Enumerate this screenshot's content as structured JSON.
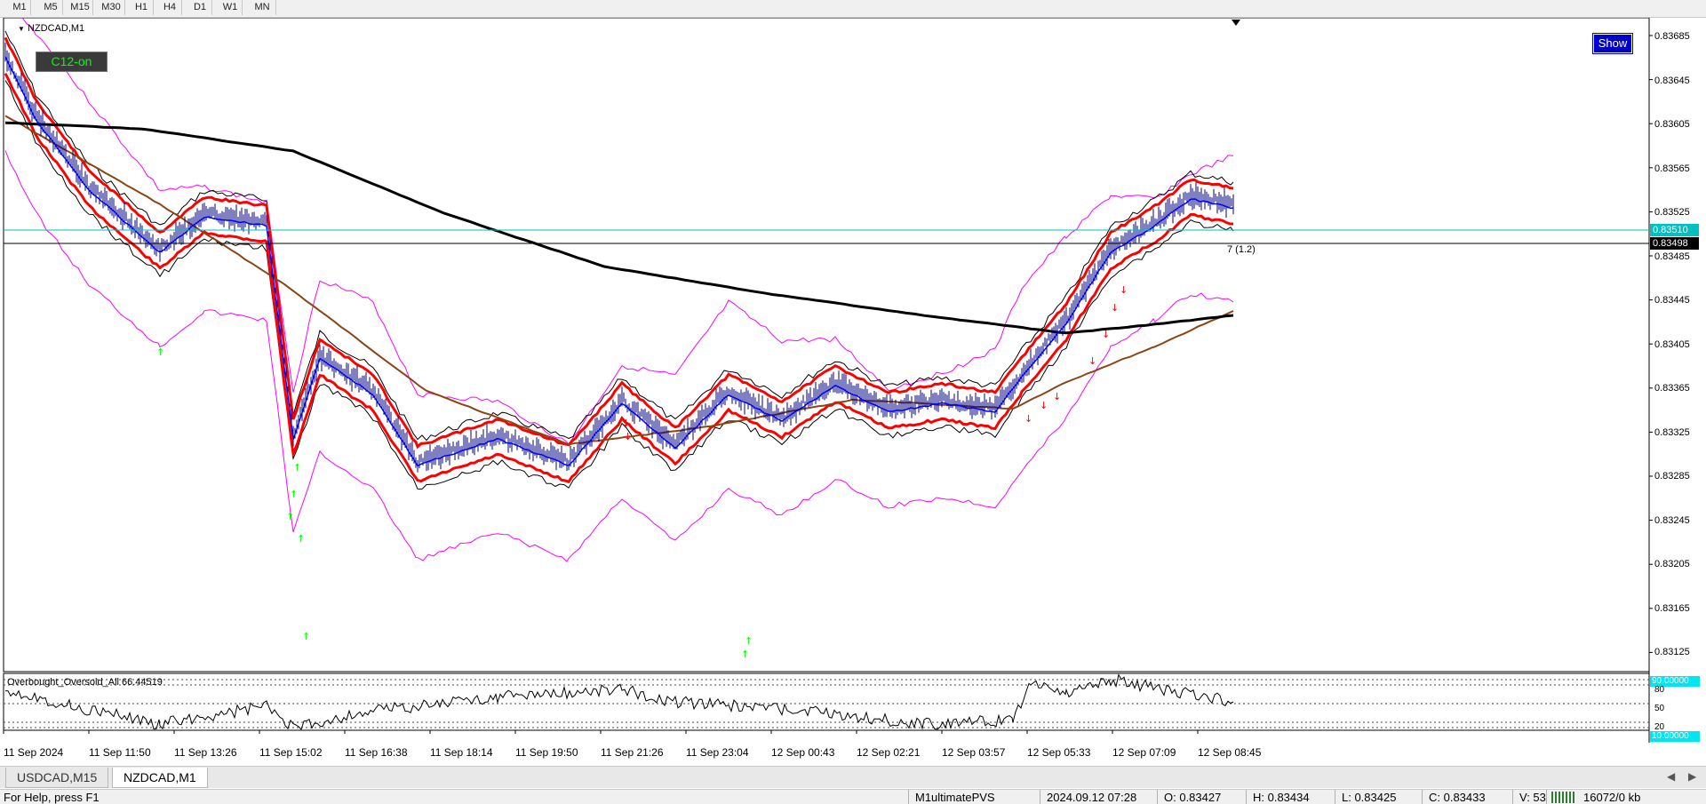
{
  "toolbar": {
    "timeframes": [
      "M1",
      "M5",
      "M15",
      "M30",
      "H1",
      "H4",
      "D1",
      "W1",
      "MN"
    ]
  },
  "chart": {
    "symbol_label": "NZDCAD,M1",
    "ea_badge": "C12-on",
    "show_button": "Show",
    "bid_price": "0.83510",
    "ask_price": "0.83498",
    "annotation": "7 (1.2)",
    "price_axis": [
      "0.83685",
      "0.83645",
      "0.83605",
      "0.83565",
      "0.83525",
      "0.83485",
      "0.83445",
      "0.83405",
      "0.83365",
      "0.83325",
      "0.83285",
      "0.83245",
      "0.83205",
      "0.83165",
      "0.83125"
    ],
    "time_axis": [
      "11 Sep 2024",
      "11 Sep 11:50",
      "11 Sep 13:26",
      "11 Sep 15:02",
      "11 Sep 16:38",
      "11 Sep 18:14",
      "11 Sep 19:50",
      "11 Sep 21:26",
      "11 Sep 23:04",
      "12 Sep 00:43",
      "12 Sep 02:21",
      "12 Sep 03:57",
      "12 Sep 05:33",
      "12 Sep 07:09",
      "12 Sep 08:45"
    ],
    "colors": {
      "price_bars": "#000080",
      "ma_long": "#000000",
      "ma_brown": "#8b4513",
      "envelope_red": "#ff0000",
      "bollinger_magenta": "#ff00ff",
      "bid_line": "#00c0c0",
      "buy_arrows": "#00ff00",
      "sell_arrows": "#ff0000"
    }
  },
  "indicator": {
    "label": "Overbought_Oversold_All 66.44519",
    "levels": [
      "90.00000",
      "80",
      "50",
      "20",
      "10.00000"
    ]
  },
  "tabs": [
    {
      "label": "USDCAD,M15",
      "active": false
    },
    {
      "label": "NZDCAD,M1",
      "active": true
    }
  ],
  "status": {
    "help": "For Help, press F1",
    "profile": "M1ultimatePVS",
    "datetime": "2024.09.12 07:28",
    "open": "O: 0.83427",
    "high": "H: 0.83434",
    "low": "L: 0.83425",
    "close": "C: 0.83433",
    "volume": "V: 53",
    "traffic": "16072/0 kb"
  }
}
